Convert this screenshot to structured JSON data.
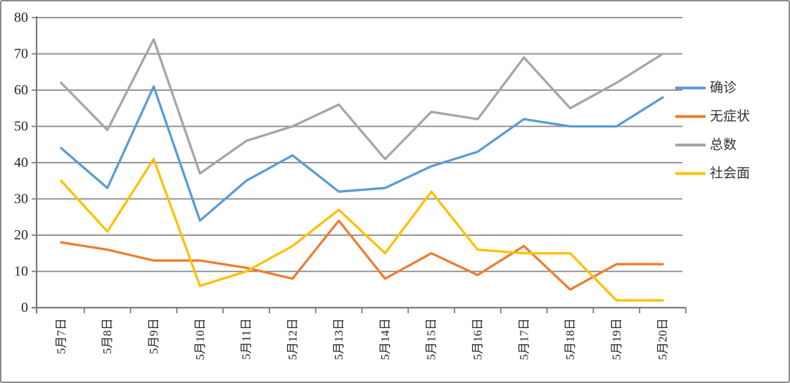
{
  "chart_data": {
    "type": "line",
    "title": "",
    "xlabel": "",
    "ylabel": "",
    "categories": [
      "5月7日",
      "5月8日",
      "5月9日",
      "5月10日",
      "5月11日",
      "5月12日",
      "5月13日",
      "5月14日",
      "5月15日",
      "5月16日",
      "5月17日",
      "5月18日",
      "5月19日",
      "5月20日"
    ],
    "series": [
      {
        "name": "确诊",
        "color": "#5B9BD5",
        "values": [
          44,
          33,
          61,
          24,
          35,
          42,
          32,
          33,
          39,
          43,
          52,
          50,
          50,
          58
        ]
      },
      {
        "name": "无症状",
        "color": "#ED7D31",
        "values": [
          18,
          16,
          13,
          13,
          11,
          8,
          24,
          8,
          15,
          9,
          17,
          5,
          12,
          12
        ]
      },
      {
        "name": "总数",
        "color": "#A5A5A5",
        "values": [
          62,
          49,
          74,
          37,
          46,
          50,
          56,
          41,
          54,
          52,
          69,
          55,
          62,
          70
        ]
      },
      {
        "name": "社会面",
        "color": "#FFC000",
        "values": [
          35,
          21,
          41,
          6,
          10,
          17,
          27,
          15,
          32,
          16,
          15,
          15,
          2,
          2
        ]
      }
    ],
    "ylim": [
      0,
      80
    ],
    "ytick_step": 10,
    "ytick_labels": [
      "0",
      "10",
      "20",
      "30",
      "40",
      "50",
      "60",
      "70",
      "80"
    ],
    "grid": true,
    "legend_position": "right"
  },
  "colors": {
    "gridline": "#868686",
    "axis": "#7c7c7c",
    "tick_text": "#262626",
    "legend_text": "#333333",
    "background": "#ffffff",
    "border": "#8a8a8a"
  }
}
